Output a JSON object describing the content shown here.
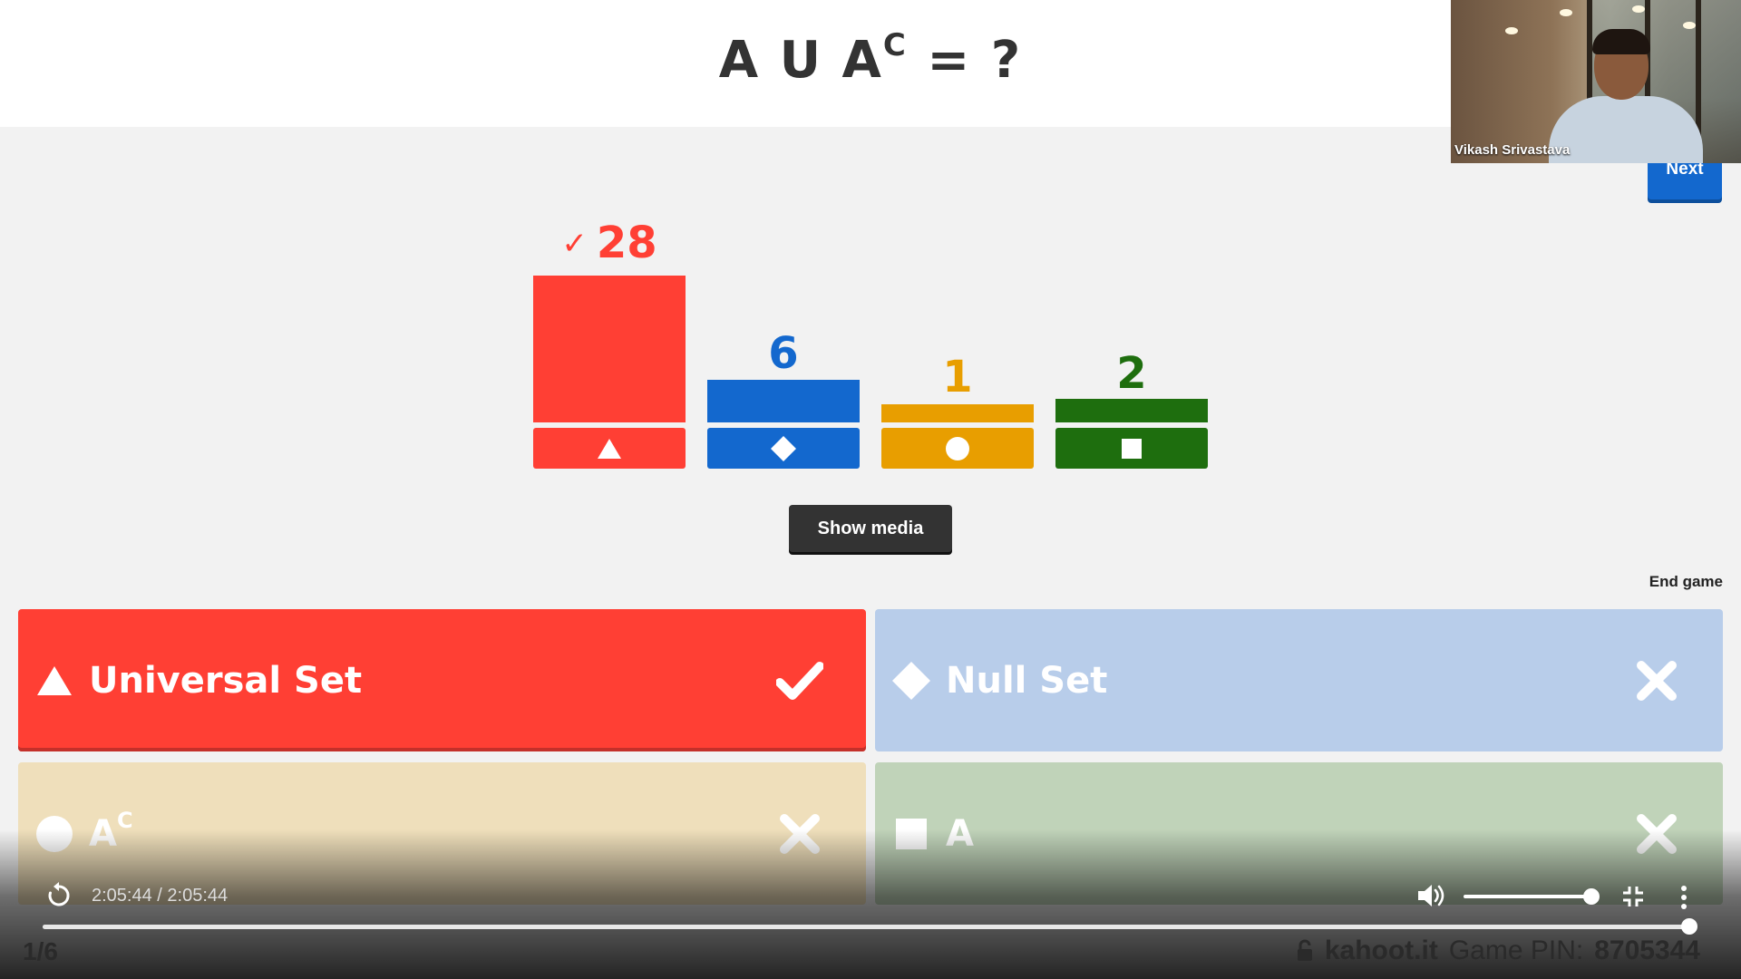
{
  "question": {
    "base": "A U A",
    "superscript": "C",
    "suffix": "= ?"
  },
  "next_label": "Next",
  "webcam": {
    "presenter_name": "Vikash Srivastava"
  },
  "results": [
    {
      "shape": "triangle",
      "count": "28",
      "correct": true,
      "check_glyph": "✓",
      "color": "#ff3f34",
      "value": 28
    },
    {
      "shape": "diamond",
      "count": "6",
      "correct": false,
      "color": "#1368ce",
      "value": 6
    },
    {
      "shape": "circle",
      "count": "1",
      "correct": false,
      "color": "#e89e00",
      "value": 1
    },
    {
      "shape": "square",
      "count": "2",
      "correct": false,
      "color": "#1e6e0e",
      "value": 2
    }
  ],
  "show_media_label": "Show media",
  "end_game_label": "End game",
  "answers": [
    {
      "shape": "triangle",
      "label": "Universal Set",
      "label_sup": "",
      "correct": true
    },
    {
      "shape": "diamond",
      "label": "Null Set",
      "label_sup": "",
      "correct": false
    },
    {
      "shape": "circle",
      "label": "A",
      "label_sup": "C",
      "correct": false
    },
    {
      "shape": "square",
      "label": "A",
      "label_sup": "",
      "correct": false
    }
  ],
  "player": {
    "time": "2:05:44 / 2:05:44",
    "progress": 1.0,
    "volume": 0.9
  },
  "footer": {
    "counter": "1/6",
    "site": "kahoot.it",
    "pin_label": "Game PIN:",
    "pin": "8705344"
  }
}
